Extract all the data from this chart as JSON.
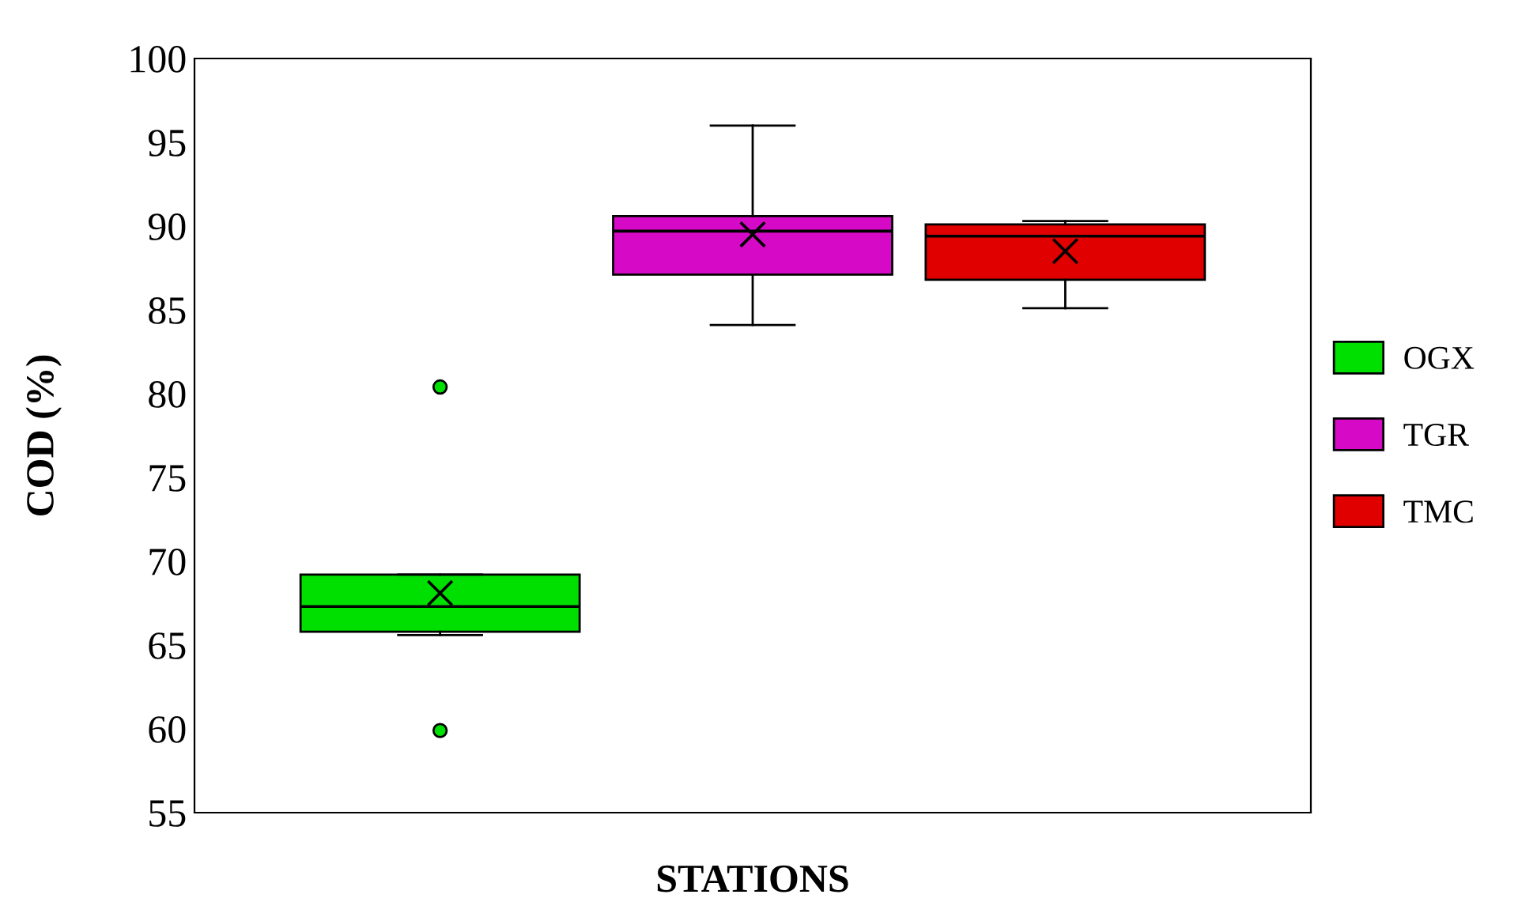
{
  "chart_data": {
    "type": "box",
    "xlabel": "STATIONS",
    "ylabel": "COD (%)",
    "categories": [
      null
    ],
    "ylim": [
      55,
      100
    ],
    "yticks": [
      55,
      60,
      65,
      70,
      75,
      80,
      85,
      90,
      95,
      100
    ],
    "grid": false,
    "legend": "right",
    "series": [
      {
        "name": "OGX",
        "color": "#00e000",
        "boxes": [
          {
            "low": 65.6,
            "q1": 65.8,
            "median": 67.3,
            "q3": 69.2,
            "high": 69.2,
            "mean": 68.1,
            "outliers": [
              80.4,
              59.9
            ]
          }
        ]
      },
      {
        "name": "TGR",
        "color": "#d60ac6",
        "boxes": [
          {
            "low": 84.1,
            "q1": 87.1,
            "median": 89.7,
            "q3": 90.6,
            "high": 96.0,
            "mean": 89.5
          }
        ]
      },
      {
        "name": "TMC",
        "color": "#e00000",
        "boxes": [
          {
            "low": 85.1,
            "q1": 86.8,
            "median": 89.4,
            "q3": 90.1,
            "high": 90.3,
            "mean": 88.5
          }
        ]
      }
    ]
  }
}
